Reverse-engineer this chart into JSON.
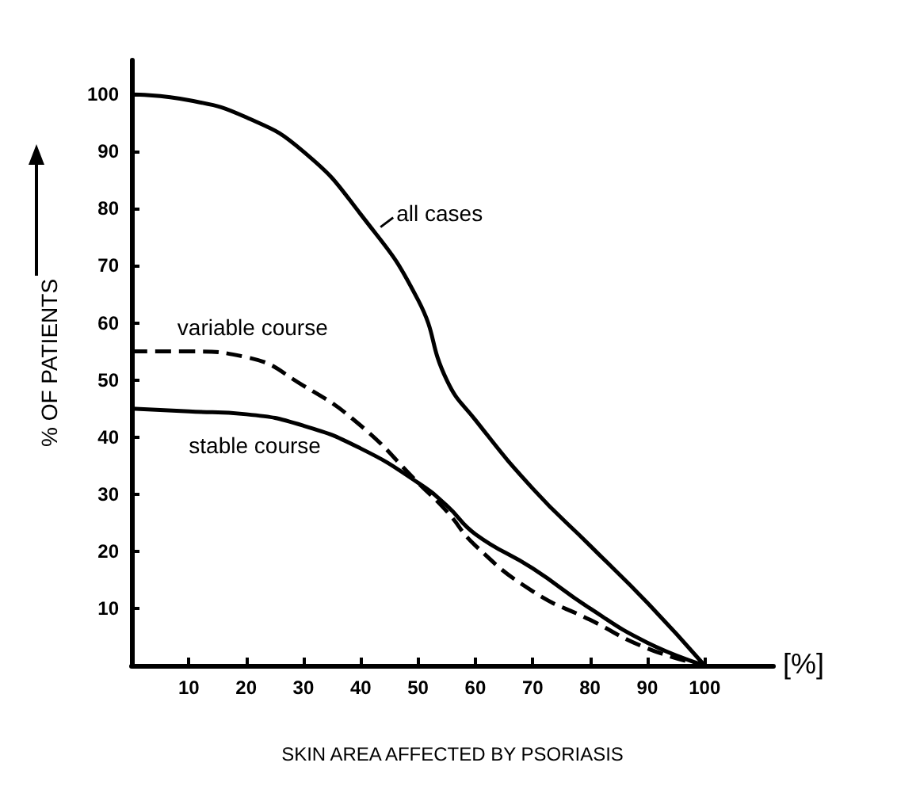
{
  "chart_data": {
    "type": "line",
    "xlabel": "SKIN AREA AFFECTED BY PSORIASIS",
    "ylabel": "% OF PATIENTS",
    "annotations": [
      "[%]"
    ],
    "x": [
      0,
      10,
      20,
      30,
      40,
      50,
      55,
      60,
      70,
      80,
      90,
      100
    ],
    "series": [
      {
        "name": "all cases",
        "color": "#000000",
        "line_style": "solid",
        "values": [
          100,
          99,
          96,
          90,
          79,
          64,
          50,
          43,
          31,
          21,
          11,
          0
        ]
      },
      {
        "name": "variable course",
        "color": "#000000",
        "line_style": "dashed",
        "values": [
          55,
          55,
          54,
          49,
          42,
          32,
          27,
          21,
          13,
          8,
          3,
          0
        ]
      },
      {
        "name": "stable course",
        "color": "#000000",
        "line_style": "solid",
        "values": [
          45,
          44.5,
          44,
          42,
          38,
          32,
          28,
          23,
          17,
          10,
          4,
          0
        ]
      }
    ],
    "xlim": [
      0,
      112
    ],
    "xticks": [
      10,
      20,
      30,
      40,
      50,
      60,
      70,
      80,
      90,
      100
    ],
    "ylim": [
      0,
      106
    ],
    "yticks": [
      10,
      20,
      30,
      40,
      50,
      60,
      70,
      80,
      90,
      100
    ],
    "grid": false,
    "marker": "none"
  }
}
